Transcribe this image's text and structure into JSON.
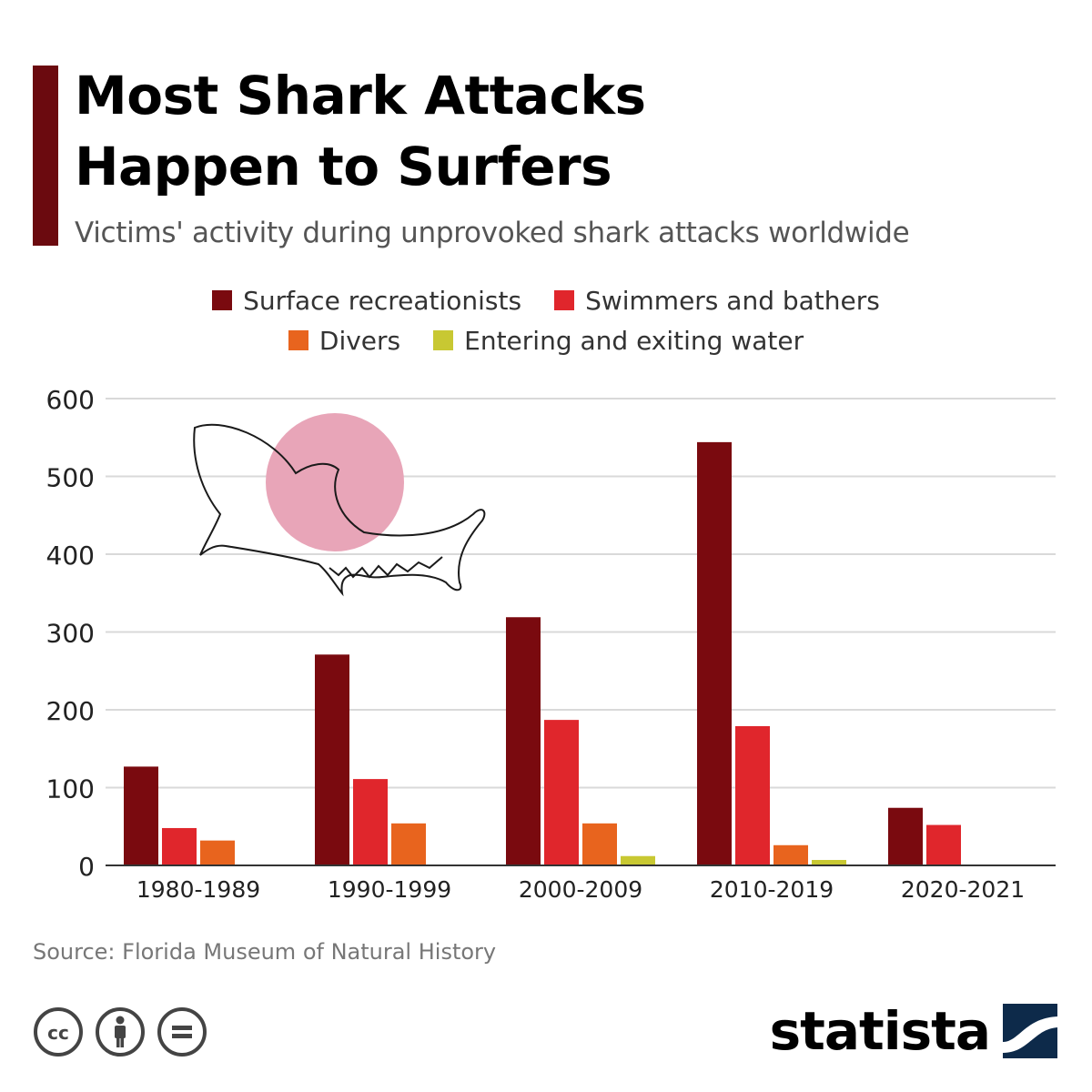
{
  "title_lines": [
    "Most Shark Attacks",
    "Happen to Surfers"
  ],
  "subtitle": "Victims' activity during unprovoked shark attacks worldwide",
  "source": "Source: Florida Museum of Natural History",
  "brand": "statista",
  "icons": {
    "license": [
      "creative-commons-icon",
      "attribution-icon",
      "no-derivatives-icon"
    ],
    "illustration": "shark-icon",
    "brand": "statista-logo-icon"
  },
  "colors": {
    "accent": "#6b0a0f",
    "gridline": "#d9d9d9",
    "axis": "#333333",
    "shark_circle": "#e8a5b8"
  },
  "chart_data": {
    "type": "bar",
    "categories": [
      "1980-1989",
      "1990-1999",
      "2000-2009",
      "2010-2019",
      "2020-2021"
    ],
    "series": [
      {
        "name": "Surface recreationists",
        "color": "#7a0a0f",
        "values": [
          127,
          271,
          319,
          544,
          74
        ]
      },
      {
        "name": "Swimmers and bathers",
        "color": "#e0262c",
        "values": [
          48,
          111,
          187,
          179,
          52
        ]
      },
      {
        "name": "Divers",
        "color": "#e8641e",
        "values": [
          32,
          54,
          54,
          26,
          0
        ]
      },
      {
        "name": "Entering and exiting water",
        "color": "#c8c832",
        "values": [
          0,
          0,
          12,
          7,
          0
        ]
      }
    ],
    "yticks": [
      0,
      100,
      200,
      300,
      400,
      500,
      600
    ],
    "ylim": [
      0,
      600
    ],
    "grid": true,
    "legend_position": "top-center"
  }
}
